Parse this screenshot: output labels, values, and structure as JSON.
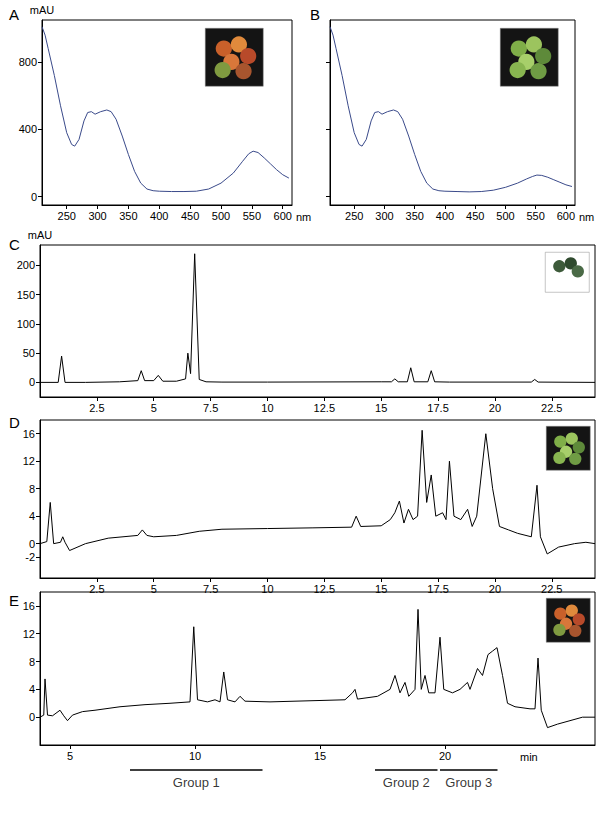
{
  "chart_data": [
    {
      "type": "line",
      "title": "A",
      "xlabel": "nm",
      "ylabel": "mAU",
      "color": "#3a4a8a",
      "x": [
        210,
        215,
        220,
        230,
        240,
        250,
        258,
        263,
        270,
        278,
        284,
        290,
        296,
        305,
        315,
        322,
        330,
        340,
        350,
        360,
        370,
        380,
        390,
        400,
        420,
        440,
        460,
        480,
        500,
        520,
        535,
        545,
        552,
        560,
        570,
        580,
        590,
        600,
        610
      ],
      "values": [
        1010,
        960,
        880,
        720,
        540,
        380,
        310,
        300,
        340,
        450,
        500,
        505,
        490,
        505,
        515,
        505,
        460,
        360,
        250,
        150,
        80,
        45,
        35,
        32,
        30,
        30,
        32,
        45,
        80,
        140,
        210,
        255,
        270,
        262,
        230,
        195,
        160,
        130,
        110
      ],
      "xlim": [
        210,
        615
      ],
      "xticks": [
        250,
        300,
        350,
        400,
        450,
        500,
        550,
        600
      ],
      "ylim": [
        -50,
        1050
      ],
      "yticks": [
        0,
        400,
        800
      ]
    },
    {
      "type": "line",
      "title": "B",
      "xlabel": "nm",
      "color": "#3a4a8a",
      "x": [
        210,
        215,
        220,
        230,
        240,
        250,
        258,
        263,
        270,
        278,
        284,
        290,
        296,
        305,
        315,
        322,
        330,
        340,
        350,
        360,
        370,
        380,
        390,
        400,
        420,
        440,
        460,
        480,
        500,
        520,
        535,
        545,
        552,
        560,
        570,
        580,
        590,
        600,
        610
      ],
      "values": [
        1010,
        960,
        880,
        720,
        540,
        380,
        310,
        300,
        340,
        450,
        500,
        505,
        490,
        505,
        515,
        505,
        460,
        360,
        250,
        150,
        80,
        45,
        35,
        32,
        30,
        28,
        30,
        38,
        55,
        80,
        105,
        120,
        128,
        126,
        115,
        100,
        85,
        70,
        60
      ],
      "xlim": [
        210,
        615
      ],
      "xticks": [
        250,
        300,
        350,
        400,
        450,
        500,
        550,
        600
      ],
      "ylim": [
        -50,
        1050
      ],
      "yticks": [
        0,
        400,
        800
      ],
      "tick_labels": "x"
    },
    {
      "type": "line",
      "title": "C",
      "ylabel": "mAU",
      "color": "#000000",
      "x": [
        0,
        0.8,
        0.95,
        1.1,
        2,
        3.5,
        4.3,
        4.45,
        4.6,
        5.0,
        5.2,
        5.4,
        6.0,
        6.4,
        6.5,
        6.62,
        6.8,
        7.0,
        7.3,
        8,
        10,
        15,
        15.45,
        15.6,
        15.75,
        16.15,
        16.3,
        16.45,
        17.05,
        17.2,
        17.35,
        18,
        21.6,
        21.75,
        21.9,
        24.4
      ],
      "values": [
        0,
        0,
        45,
        0,
        0,
        1,
        3,
        20,
        3,
        3,
        12,
        2,
        2,
        6,
        50,
        15,
        220,
        5,
        1,
        0.5,
        0.5,
        1,
        1,
        6,
        1,
        1,
        25,
        1,
        1,
        20,
        1,
        0.5,
        0.5,
        5,
        0.5,
        0
      ],
      "xlim": [
        0,
        24.4
      ],
      "xticks": [
        2.5,
        5,
        7.5,
        10,
        12.5,
        15,
        17.5,
        20,
        22.5
      ],
      "ylim": [
        -25,
        235
      ],
      "yticks": [
        0,
        50,
        100,
        150,
        200
      ]
    },
    {
      "type": "line",
      "title": "D",
      "color": "#000000",
      "x": [
        0,
        0.3,
        0.45,
        0.6,
        0.9,
        1.0,
        1.1,
        1.3,
        2,
        3,
        4.3,
        4.5,
        4.7,
        5,
        6,
        7,
        8,
        10,
        12,
        13.7,
        13.9,
        14.1,
        15,
        15.4,
        15.6,
        15.8,
        16.0,
        16.2,
        16.4,
        16.6,
        16.8,
        17.0,
        17.2,
        17.4,
        17.7,
        17.85,
        18.0,
        18.2,
        18.5,
        18.8,
        19.0,
        19.2,
        19.6,
        19.9,
        20.2,
        20.6,
        21.0,
        21.6,
        21.85,
        22.0,
        22.3,
        22.8,
        23.5,
        24,
        24.4
      ],
      "values": [
        0,
        0.3,
        6,
        0,
        0.2,
        1,
        0.2,
        -1,
        0,
        0.8,
        1.2,
        2,
        1.2,
        1,
        1.2,
        1.8,
        2.1,
        2.2,
        2.3,
        2.4,
        4,
        2.5,
        2.6,
        3.5,
        4.5,
        6.2,
        3,
        5,
        3.5,
        4,
        16.5,
        6,
        10,
        4,
        4.5,
        3.5,
        12,
        4,
        3.5,
        5,
        2.5,
        4,
        16,
        8,
        2.5,
        2,
        1.5,
        1,
        8.5,
        1,
        -1.5,
        -0.5,
        0,
        0.2,
        0
      ],
      "xlim": [
        0,
        24.4
      ],
      "xticks": [
        2.5,
        5,
        7.5,
        10,
        12.5,
        15,
        17.5,
        20,
        22.5
      ],
      "ylim": [
        -5,
        18
      ],
      "yticks": [
        -2,
        0,
        4,
        8,
        12,
        16
      ]
    },
    {
      "type": "line",
      "title": "E",
      "xlabel": "min",
      "color": "#000000",
      "x": [
        3.8,
        3.95,
        4.0,
        4.1,
        4.3,
        4.6,
        4.75,
        4.9,
        5.1,
        5.5,
        6,
        7,
        8,
        9,
        9.8,
        9.95,
        10.1,
        10.5,
        10.8,
        11.0,
        11.15,
        11.3,
        11.6,
        11.8,
        12.0,
        13,
        14,
        15,
        16,
        16.3,
        16.4,
        16.5,
        17.3,
        17.8,
        18.0,
        18.2,
        18.4,
        18.55,
        18.8,
        18.92,
        19.05,
        19.2,
        19.35,
        19.6,
        19.8,
        19.95,
        20.3,
        20.6,
        20.9,
        21.0,
        21.3,
        21.5,
        21.72,
        21.9,
        22.08,
        22.3,
        22.5,
        22.8,
        23.4,
        23.6,
        23.72,
        23.85,
        24.1,
        24.5,
        25,
        25.5,
        26
      ],
      "values": [
        0,
        0.3,
        5.5,
        0.3,
        0.2,
        1,
        0.2,
        -0.5,
        0.3,
        0.8,
        1,
        1.5,
        1.8,
        2,
        2.2,
        13,
        2.5,
        2.2,
        2.5,
        2.2,
        6.5,
        2.5,
        2.2,
        3,
        2.3,
        2.2,
        2.3,
        2.4,
        2.5,
        3.5,
        4,
        2.6,
        3,
        4,
        6,
        3.5,
        5,
        3,
        4,
        15.5,
        4,
        6,
        3.5,
        3.5,
        11.5,
        4,
        3.5,
        4,
        5,
        4,
        7,
        6,
        9,
        9.5,
        10,
        6,
        2,
        1.5,
        1.2,
        1.2,
        8.5,
        1,
        -1.5,
        -1,
        -0.5,
        0,
        0
      ],
      "xlim": [
        3.8,
        26
      ],
      "xticks": [
        5,
        10,
        15,
        20
      ],
      "ylim": [
        -4,
        18
      ],
      "yticks": [
        0,
        4,
        8,
        12,
        16
      ],
      "groups": [
        {
          "label": "Group 1",
          "start": 7.4,
          "end": 12.7
        },
        {
          "label": "Group 2",
          "start": 17.2,
          "end": 19.7
        },
        {
          "label": "Group 3",
          "start": 19.8,
          "end": 22.1
        }
      ]
    }
  ]
}
